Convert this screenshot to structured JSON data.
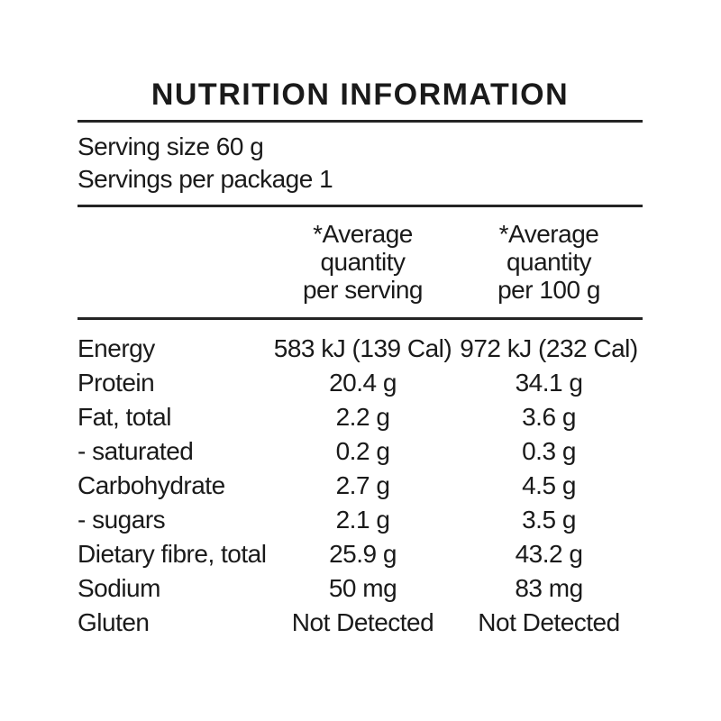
{
  "page": {
    "background": "#ffffff",
    "text_color": "#1a1a1a",
    "rule_color": "#242424"
  },
  "label": {
    "title": "NUTRITION INFORMATION",
    "serving_size": "Serving size 60 g",
    "servings_per_package": "Servings per package 1",
    "columns": {
      "per_serving_header": "*Average\nquantity\nper serving",
      "per_100g_header": "*Average\nquantity\nper 100 g"
    },
    "rows": [
      {
        "label": "Energy",
        "per_serving": "583 kJ (139 Cal)",
        "per_100g": "972 kJ (232 Cal)"
      },
      {
        "label": "Protein",
        "per_serving": "20.4 g",
        "per_100g": "34.1 g"
      },
      {
        "label": "Fat, total",
        "per_serving": "2.2 g",
        "per_100g": "3.6 g"
      },
      {
        "label": "- saturated",
        "per_serving": "0.2 g",
        "per_100g": "0.3 g"
      },
      {
        "label": "Carbohydrate",
        "per_serving": "2.7 g",
        "per_100g": "4.5 g"
      },
      {
        "label": "- sugars",
        "per_serving": "2.1 g",
        "per_100g": "3.5 g"
      },
      {
        "label": "Dietary fibre, total",
        "per_serving": "25.9 g",
        "per_100g": "43.2 g"
      },
      {
        "label": "Sodium",
        "per_serving": "50 mg",
        "per_100g": "83 mg"
      },
      {
        "label": "Gluten",
        "per_serving": "Not Detected",
        "per_100g": "Not Detected"
      }
    ]
  }
}
